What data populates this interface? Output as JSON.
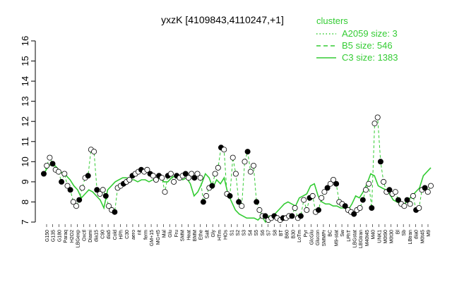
{
  "chart_data": {
    "type": "line",
    "title": "yxzK [4109843,4110247,+1]",
    "xlabel": "",
    "ylabel": "",
    "ylim": [
      7,
      16
    ],
    "yticks": [
      7,
      8,
      9,
      10,
      11,
      12,
      13,
      14,
      15,
      16
    ],
    "grid": false,
    "legend": {
      "title": "clusters",
      "placement": "top-right",
      "entries": [
        {
          "label": "A2059 size: 3",
          "style": "dotted"
        },
        {
          "label": "B5 size: 546",
          "style": "dashed"
        },
        {
          "label": "C3 size: 1383",
          "style": "solid"
        }
      ]
    },
    "colors": {
      "series": "#33cc33",
      "point_fill": "#000000",
      "point_open": "#ffffff"
    },
    "x_labels": [
      "G150",
      "G135",
      "G180",
      "Paraq",
      "H2O2",
      "LBGexp",
      "Oxctl",
      "Diami",
      "dia15",
      "C90",
      "dia5",
      "Cold",
      "HPh",
      "C30",
      "aero",
      "nit",
      "ferm",
      "GM+15",
      "MG+t5",
      "Mal",
      "Glu",
      "Fru",
      "SMM",
      "Heat",
      "BMM",
      "Ethe",
      "Salt",
      "Gly",
      "HTm",
      "HOs",
      "S1",
      "S2",
      "S3",
      "S4",
      "S5",
      "S6",
      "S7",
      "S8",
      "BT",
      "B60",
      "B30",
      "LoTm",
      "Pyr",
      "GlcGlu",
      "Glucon",
      "SMMPr",
      "BC",
      "M9-stat",
      "Sw",
      "LPhT",
      "LBGstat",
      "LBGtran",
      "M40t45",
      "M40",
      "UNK1",
      "M0t90",
      "M0t30",
      "Bl",
      "Sb",
      "LBtran",
      "dia0",
      "M0t45",
      "M9"
    ],
    "series_values": [
      9.4,
      9.7,
      9.9,
      9.8,
      9.6,
      9.4,
      9.3,
      9.1,
      8.8,
      8.6,
      8.2,
      8.4,
      8.6,
      8.5,
      8.3,
      8.1,
      7.7,
      8.6,
      8.8,
      9.0,
      9.1,
      9.2,
      9.2,
      9.1,
      9.1,
      9.0,
      9.1,
      9.1,
      9.0,
      9.1,
      9.1,
      9.2,
      9.0,
      9.0,
      9.2,
      9.3,
      9.2,
      9.1,
      9.2,
      8.9,
      8.3,
      8.5,
      8.9,
      9.4,
      9.2,
      8.7,
      9.1,
      8.9,
      9.2,
      8.4,
      8.0,
      7.6,
      7.4,
      7.3,
      7.2,
      7.2,
      7.2,
      7.1,
      7.3,
      7.0,
      7.3,
      7.3,
      7.5,
      7.7,
      7.9,
      8.0,
      7.9,
      7.8,
      8.2,
      8.3,
      8.4,
      8.8,
      8.9,
      8.3,
      8.0,
      7.9,
      7.9,
      7.8,
      7.8,
      7.7,
      7.7,
      7.6,
      7.9,
      8.3,
      8.2,
      8.5,
      8.9,
      9.4,
      9.3,
      8.8,
      8.7,
      8.6,
      8.4,
      8.1,
      8.0,
      7.9,
      7.9,
      8.1,
      8.3,
      8.5,
      8.7,
      9.3,
      9.5,
      9.7
    ],
    "points": [
      {
        "x": 1,
        "y": 9.4
      },
      {
        "x": 2,
        "y": 9.8
      },
      {
        "x": 3,
        "y": 10.2
      },
      {
        "x": 4,
        "y": 9.9
      },
      {
        "x": 5,
        "y": 9.6
      },
      {
        "x": 6,
        "y": 9.5
      },
      {
        "x": 7,
        "y": 9.0
      },
      {
        "x": 8,
        "y": 9.4
      },
      {
        "x": 9,
        "y": 8.8
      },
      {
        "x": 10,
        "y": 8.6
      },
      {
        "x": 11,
        "y": 8.0
      },
      {
        "x": 12,
        "y": 7.8
      },
      {
        "x": 13,
        "y": 8.1
      },
      {
        "x": 14,
        "y": 8.7
      },
      {
        "x": 15,
        "y": 9.2
      },
      {
        "x": 16,
        "y": 9.3
      },
      {
        "x": 17,
        "y": 10.6
      },
      {
        "x": 18,
        "y": 10.5
      },
      {
        "x": 19,
        "y": 8.6
      },
      {
        "x": 20,
        "y": 8.4
      },
      {
        "x": 21,
        "y": 8.6
      },
      {
        "x": 22,
        "y": 8.3
      },
      {
        "x": 23,
        "y": 7.8
      },
      {
        "x": 24,
        "y": 7.6
      },
      {
        "x": 25,
        "y": 7.5
      },
      {
        "x": 26,
        "y": 8.7
      },
      {
        "x": 27,
        "y": 8.8
      },
      {
        "x": 28,
        "y": 8.9
      },
      {
        "x": 29,
        "y": 9.0
      },
      {
        "x": 30,
        "y": 9.1
      },
      {
        "x": 31,
        "y": 9.3
      },
      {
        "x": 32,
        "y": 9.4
      },
      {
        "x": 33,
        "y": 9.5
      },
      {
        "x": 34,
        "y": 9.6
      },
      {
        "x": 35,
        "y": 9.5
      },
      {
        "x": 36,
        "y": 9.6
      },
      {
        "x": 37,
        "y": 9.4
      },
      {
        "x": 38,
        "y": 9.3
      },
      {
        "x": 39,
        "y": 9.1
      },
      {
        "x": 40,
        "y": 9.3
      },
      {
        "x": 41,
        "y": 9.2
      },
      {
        "x": 42,
        "y": 8.5
      },
      {
        "x": 43,
        "y": 9.3
      },
      {
        "x": 44,
        "y": 9.4
      },
      {
        "x": 45,
        "y": 9.0
      },
      {
        "x": 46,
        "y": 9.3
      },
      {
        "x": 47,
        "y": 9.2
      },
      {
        "x": 48,
        "y": 9.3
      },
      {
        "x": 49,
        "y": 9.4
      },
      {
        "x": 50,
        "y": 9.2
      },
      {
        "x": 51,
        "y": 9.4
      },
      {
        "x": 52,
        "y": 9.2
      },
      {
        "x": 53,
        "y": 9.4
      },
      {
        "x": 54,
        "y": 9.2
      },
      {
        "x": 55,
        "y": 8.0
      },
      {
        "x": 56,
        "y": 8.3
      },
      {
        "x": 57,
        "y": 8.7
      },
      {
        "x": 58,
        "y": 8.8
      },
      {
        "x": 59,
        "y": 9.4
      },
      {
        "x": 60,
        "y": 9.7
      },
      {
        "x": 61,
        "y": 10.7
      },
      {
        "x": 62,
        "y": 10.6
      },
      {
        "x": 63,
        "y": 8.4
      },
      {
        "x": 64,
        "y": 8.3
      },
      {
        "x": 65,
        "y": 10.2
      },
      {
        "x": 66,
        "y": 9.4
      },
      {
        "x": 67,
        "y": 8.0
      },
      {
        "x": 68,
        "y": 7.8
      },
      {
        "x": 69,
        "y": 10.0
      },
      {
        "x": 70,
        "y": 10.5
      },
      {
        "x": 71,
        "y": 9.5
      },
      {
        "x": 72,
        "y": 9.8
      },
      {
        "x": 73,
        "y": 8.0
      },
      {
        "x": 74,
        "y": 7.6
      },
      {
        "x": 75,
        "y": 7.3
      },
      {
        "x": 76,
        "y": 7.3
      },
      {
        "x": 77,
        "y": 7.1
      },
      {
        "x": 78,
        "y": 7.2
      },
      {
        "x": 79,
        "y": 7.3
      },
      {
        "x": 80,
        "y": 7.2
      },
      {
        "x": 81,
        "y": 7.1
      },
      {
        "x": 82,
        "y": 7.2
      },
      {
        "x": 83,
        "y": 7.2
      },
      {
        "x": 84,
        "y": 7.3
      },
      {
        "x": 85,
        "y": 7.3
      },
      {
        "x": 86,
        "y": 7.7
      },
      {
        "x": 87,
        "y": 7.2
      },
      {
        "x": 88,
        "y": 7.3
      },
      {
        "x": 89,
        "y": 8.1
      },
      {
        "x": 90,
        "y": 7.6
      },
      {
        "x": 91,
        "y": 8.2
      },
      {
        "x": 92,
        "y": 8.3
      },
      {
        "x": 93,
        "y": 7.5
      },
      {
        "x": 94,
        "y": 7.6
      },
      {
        "x": 95,
        "y": 8.2
      },
      {
        "x": 96,
        "y": 8.5
      },
      {
        "x": 97,
        "y": 8.7
      },
      {
        "x": 98,
        "y": 8.9
      },
      {
        "x": 99,
        "y": 9.1
      },
      {
        "x": 100,
        "y": 8.9
      },
      {
        "x": 101,
        "y": 8.0
      },
      {
        "x": 102,
        "y": 7.9
      },
      {
        "x": 103,
        "y": 7.8
      },
      {
        "x": 104,
        "y": 7.6
      },
      {
        "x": 105,
        "y": 7.5
      },
      {
        "x": 106,
        "y": 7.4
      },
      {
        "x": 107,
        "y": 7.6
      },
      {
        "x": 108,
        "y": 7.7
      },
      {
        "x": 109,
        "y": 8.1
      },
      {
        "x": 110,
        "y": 8.6
      },
      {
        "x": 111,
        "y": 8.9
      },
      {
        "x": 112,
        "y": 7.7
      },
      {
        "x": 113,
        "y": 11.9
      },
      {
        "x": 114,
        "y": 12.2
      },
      {
        "x": 115,
        "y": 10.0
      },
      {
        "x": 116,
        "y": 9.0
      },
      {
        "x": 117,
        "y": 8.5
      },
      {
        "x": 118,
        "y": 8.6
      },
      {
        "x": 119,
        "y": 8.4
      },
      {
        "x": 120,
        "y": 8.5
      },
      {
        "x": 121,
        "y": 8.1
      },
      {
        "x": 122,
        "y": 7.9
      },
      {
        "x": 123,
        "y": 7.8
      },
      {
        "x": 124,
        "y": 8.1
      },
      {
        "x": 125,
        "y": 7.9
      },
      {
        "x": 126,
        "y": 8.3
      },
      {
        "x": 127,
        "y": 7.6
      },
      {
        "x": 128,
        "y": 7.7
      },
      {
        "x": 129,
        "y": 8.6
      },
      {
        "x": 130,
        "y": 8.7
      },
      {
        "x": 131,
        "y": 8.5
      },
      {
        "x": 132,
        "y": 8.8
      }
    ],
    "x_point_range": [
      1,
      132
    ]
  }
}
